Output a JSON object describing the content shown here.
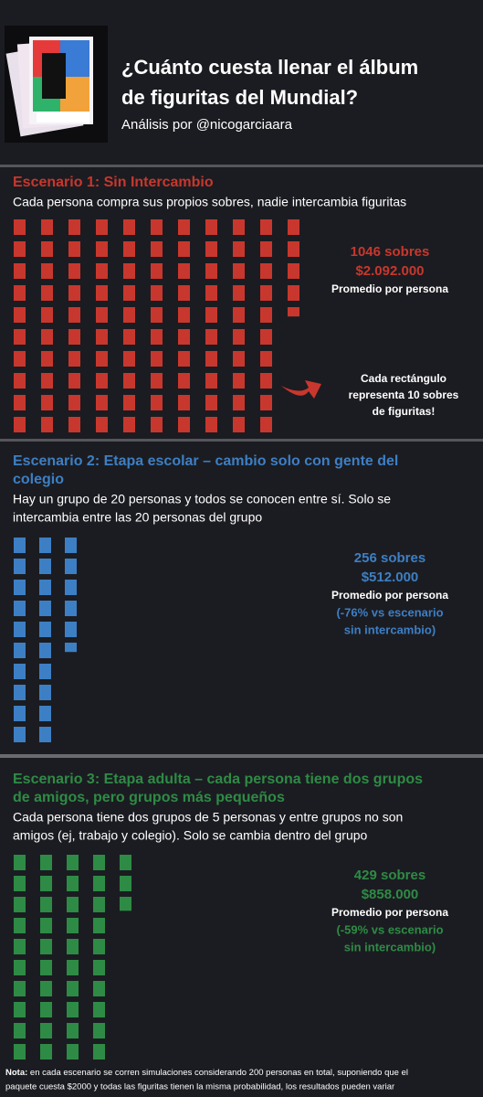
{
  "header": {
    "title_lines": [
      "¿Cuánto cuesta llenar el álbum",
      "de figuritas del Mundial?"
    ],
    "subtitle": "Análisis por @nicogarciaara"
  },
  "sections": [
    {
      "title_lines": [
        "Escenario 1: Sin Intercambio"
      ],
      "description_lines": [
        "Cada persona compra sus propios sobres, nadie intercambia figuritas"
      ],
      "sobres": 1046,
      "sobres_label": "1046 sobres",
      "cost_label": "$2.092.000",
      "average_label": "Promedio por persona",
      "comparison_lines": [],
      "color": "#c8372d"
    },
    {
      "title_lines": [
        "Escenario 2: Etapa escolar – cambio solo con gente del",
        "colegio"
      ],
      "description_lines": [
        "Hay un grupo de 20 personas y todos se conocen entre sí. Solo se",
        "intercambia entre las 20 personas del grupo"
      ],
      "sobres": 256,
      "sobres_label": "256 sobres",
      "cost_label": "$512.000",
      "average_label": "Promedio por persona",
      "comparison_lines": [
        "(-76% vs escenario",
        "sin intercambio)"
      ],
      "color": "#3d7fc4"
    },
    {
      "title_lines": [
        "Escenario 3: Etapa adulta – cada persona tiene dos grupos",
        "de amigos, pero grupos más pequeños"
      ],
      "description_lines": [
        "Cada persona tiene dos grupos de 5 personas y entre grupos no son",
        "amigos (ej, trabajo y colegio). Solo se cambia dentro del grupo"
      ],
      "sobres": 429,
      "sobres_label": "429 sobres",
      "cost_label": "$858.000",
      "average_label": "Promedio por persona",
      "comparison_lines": [
        "(-59% vs escenario",
        "sin intercambio)"
      ],
      "color": "#2e8b45"
    }
  ],
  "rect_note": {
    "lines": [
      "Cada rectángulo",
      "representa 10 sobres",
      "de figuritas!"
    ],
    "unit": 10
  },
  "footer": {
    "label": "Nota:",
    "lines": [
      " en cada escenario se corren simulaciones considerando 200 personas en total, suponiendo que el",
      "paquete cuesta $2000 y todas las figuritas tienen la misma probabilidad, los resultados pueden variar"
    ]
  }
}
